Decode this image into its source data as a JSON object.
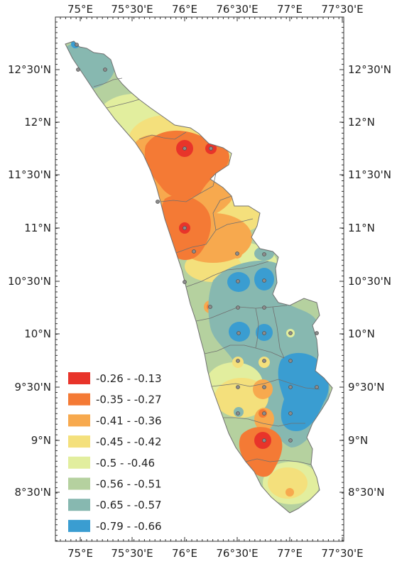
{
  "map": {
    "x_ticks": [
      "75°E",
      "75°30'E",
      "76°E",
      "76°30'E",
      "77°E",
      "77°30'E"
    ],
    "y_ticks": [
      "12°30'N",
      "12°N",
      "11°30'N",
      "11°N",
      "10°30'N",
      "10°N",
      "9°30'N",
      "9°N",
      "8°30'N"
    ],
    "legend": [
      {
        "label": "-0.26 - -0.13",
        "color": "#e8342a"
      },
      {
        "label": "-0.35 - -0.27",
        "color": "#f47a35"
      },
      {
        "label": "-0.41 - -0.36",
        "color": "#f7a94e"
      },
      {
        "label": "-0.45 - -0.42",
        "color": "#f4e07c"
      },
      {
        "label": "-0.5 - -0.46",
        "color": "#e2ee9e"
      },
      {
        "label": "-0.56 - -0.51",
        "color": "#b5d19f"
      },
      {
        "label": "-0.65 - -0.57",
        "color": "#87b8b0"
      },
      {
        "label": "-0.79 - -0.66",
        "color": "#3a9dd1"
      }
    ],
    "background_color": "#b5d19f",
    "zones": [
      {
        "class": "-0.65 - -0.57",
        "color": "#87b8b0"
      },
      {
        "class": "-0.5 - -0.46",
        "color": "#e2ee9e"
      },
      {
        "class": "-0.45 - -0.42",
        "color": "#f4e07c"
      },
      {
        "class": "-0.41 - -0.36",
        "color": "#f7a94e"
      },
      {
        "class": "-0.35 - -0.27",
        "color": "#f47a35"
      },
      {
        "class": "-0.26 - -0.13",
        "color": "#e8342a"
      },
      {
        "class": "-0.79 - -0.66",
        "color": "#3a9dd1"
      }
    ]
  }
}
